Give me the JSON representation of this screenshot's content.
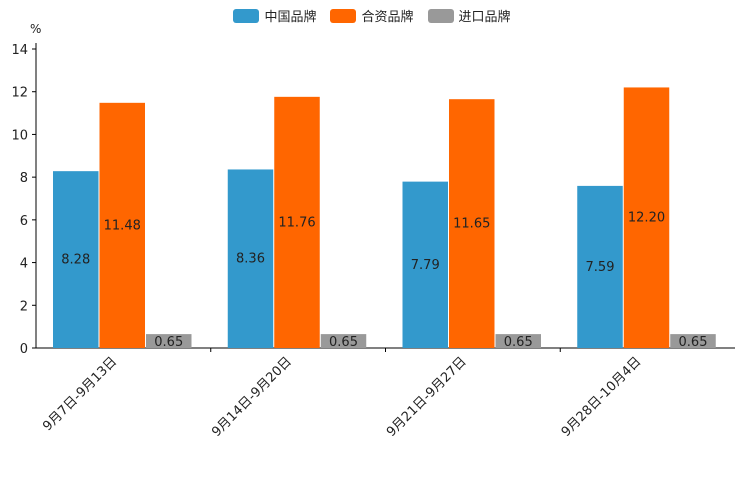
{
  "chart_data": {
    "type": "bar",
    "unit": "%",
    "categories": [
      "9月7日-9月13日",
      "9月14日-9月20日",
      "9月21日-9月27日",
      "9月28日-10月4日"
    ],
    "series": [
      {
        "name": "中国品牌",
        "color": "#3399cc",
        "values": [
          8.28,
          8.36,
          7.79,
          7.59
        ],
        "labels": [
          "8.28",
          "8.36",
          "7.79",
          "7.59"
        ]
      },
      {
        "name": "合资品牌",
        "color": "#ff6600",
        "values": [
          11.48,
          11.76,
          11.65,
          12.2
        ],
        "labels": [
          "11.48",
          "11.76",
          "11.65",
          "12.20"
        ]
      },
      {
        "name": "进口品牌",
        "color": "#999999",
        "values": [
          0.65,
          0.65,
          0.65,
          0.65
        ],
        "labels": [
          "0.65",
          "0.65",
          "0.65",
          "0.65"
        ]
      }
    ],
    "y_ticks": [
      "0",
      "2",
      "4",
      "6",
      "8",
      "10",
      "12",
      "14"
    ],
    "ylim": [
      0,
      14
    ],
    "legend_position": "top-center",
    "grid": false
  }
}
